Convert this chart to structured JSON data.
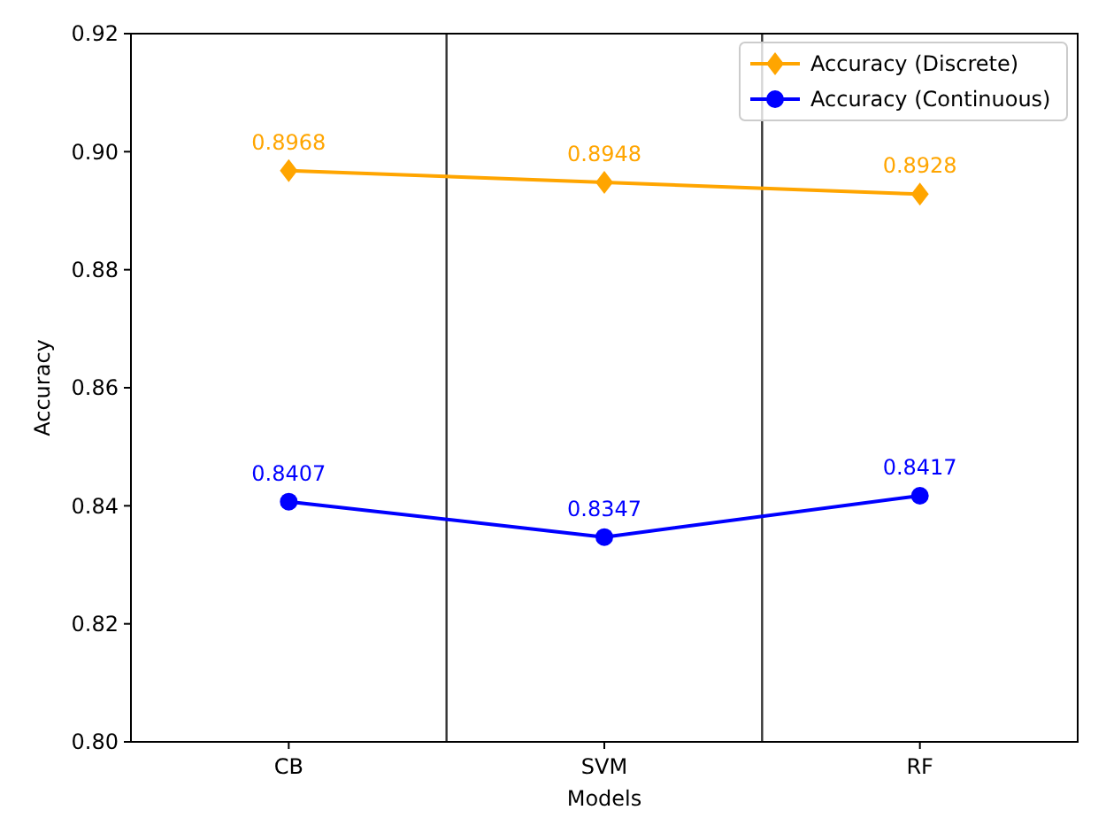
{
  "chart_data": {
    "type": "line",
    "xlabel": "Models",
    "ylabel": "Accuracy",
    "categories": [
      "CB",
      "SVM",
      "RF"
    ],
    "series": [
      {
        "name": "Accuracy (Discrete)",
        "color": "#ffa500",
        "marker": "diamond",
        "values": [
          0.8968,
          0.8948,
          0.8928
        ]
      },
      {
        "name": "Accuracy (Continuous)",
        "color": "#0000ff",
        "marker": "circle",
        "values": [
          0.8407,
          0.8347,
          0.8417
        ]
      }
    ],
    "ylim": [
      0.8,
      0.92
    ],
    "yticks": [
      {
        "value": 0.8,
        "label": "0.80"
      },
      {
        "value": 0.82,
        "label": "0.82"
      },
      {
        "value": 0.84,
        "label": "0.84"
      },
      {
        "value": 0.86,
        "label": "0.86"
      },
      {
        "value": 0.88,
        "label": "0.88"
      },
      {
        "value": 0.9,
        "label": "0.90"
      },
      {
        "value": 0.92,
        "label": "0.92"
      }
    ],
    "data_labels": true,
    "legend": "top right",
    "grid": false,
    "line_style": "solid"
  }
}
